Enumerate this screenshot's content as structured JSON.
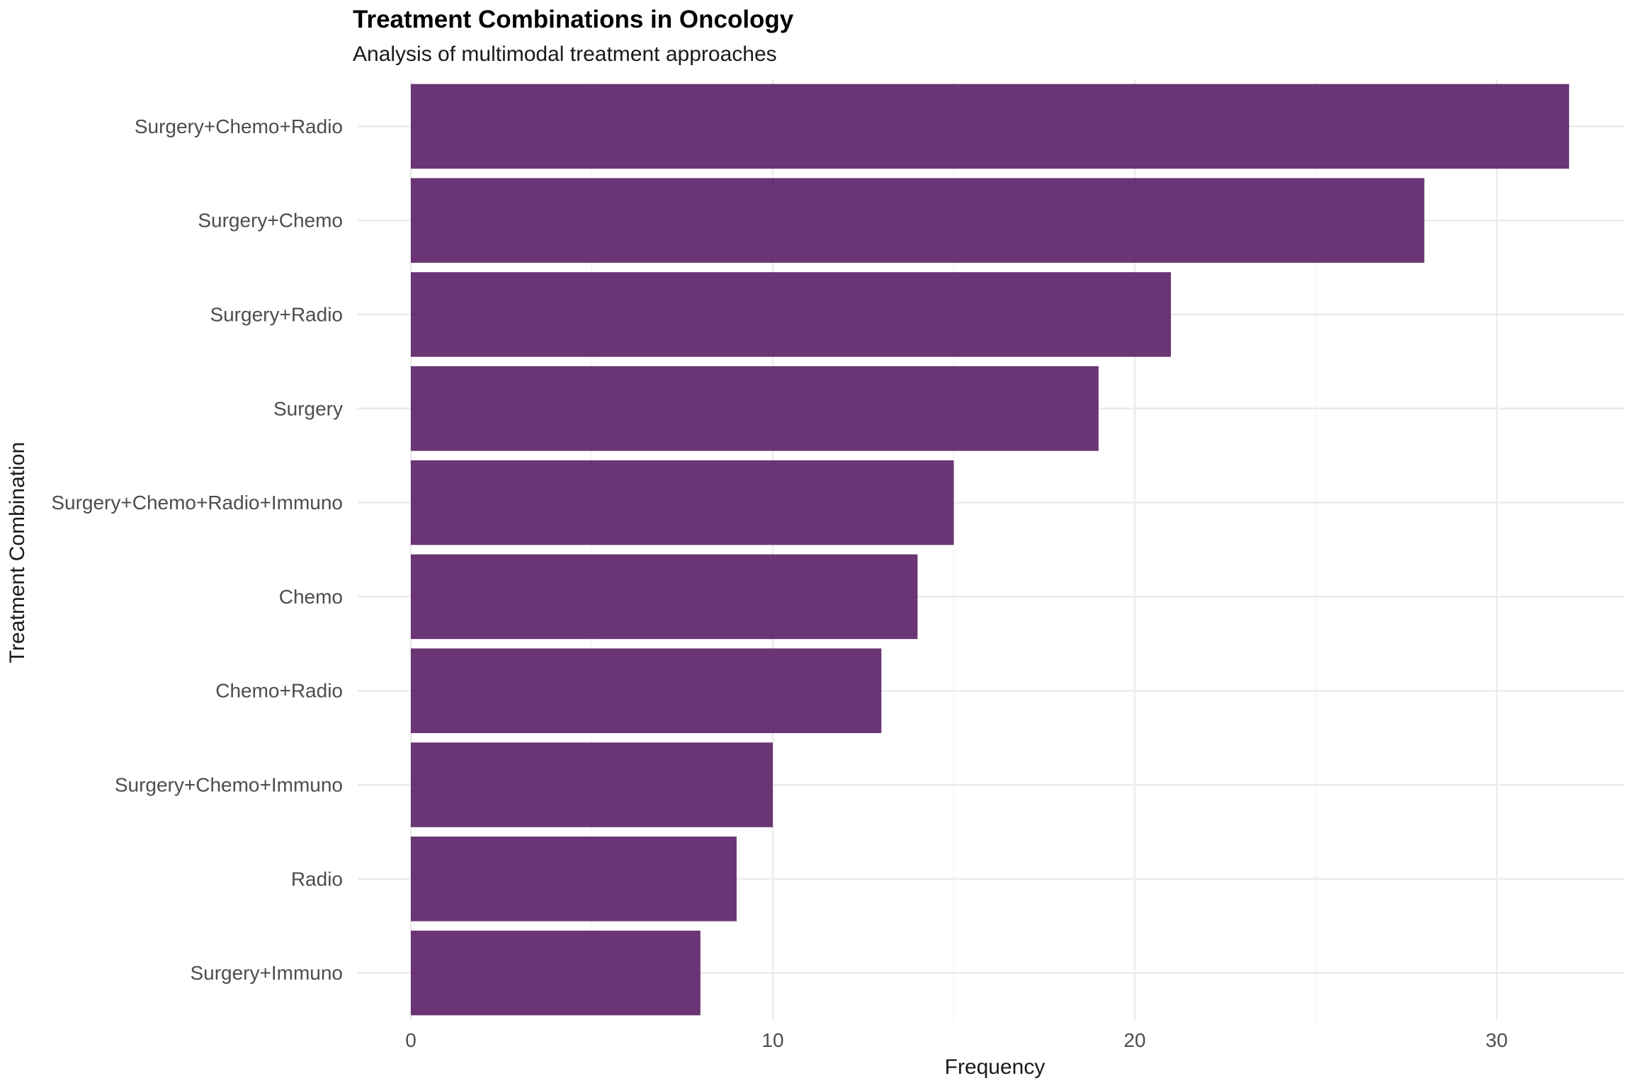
{
  "chart_data": {
    "type": "bar",
    "orientation": "horizontal",
    "title": "Treatment Combinations in Oncology",
    "subtitle": "Analysis of multimodal treatment approaches",
    "xlabel": "Frequency",
    "ylabel": "Treatment Combination",
    "categories": [
      "Surgery+Chemo+Radio",
      "Surgery+Chemo",
      "Surgery+Radio",
      "Surgery",
      "Surgery+Chemo+Radio+Immuno",
      "Chemo",
      "Chemo+Radio",
      "Surgery+Chemo+Immuno",
      "Radio",
      "Surgery+Immuno"
    ],
    "values": [
      32,
      28,
      21,
      19,
      15,
      14,
      13,
      10,
      9,
      8
    ],
    "xlim": [
      0,
      33.5
    ],
    "xticks": [
      0,
      10,
      20,
      30
    ],
    "bar_color": "#5b1e66",
    "grid": true,
    "legend": "none"
  }
}
